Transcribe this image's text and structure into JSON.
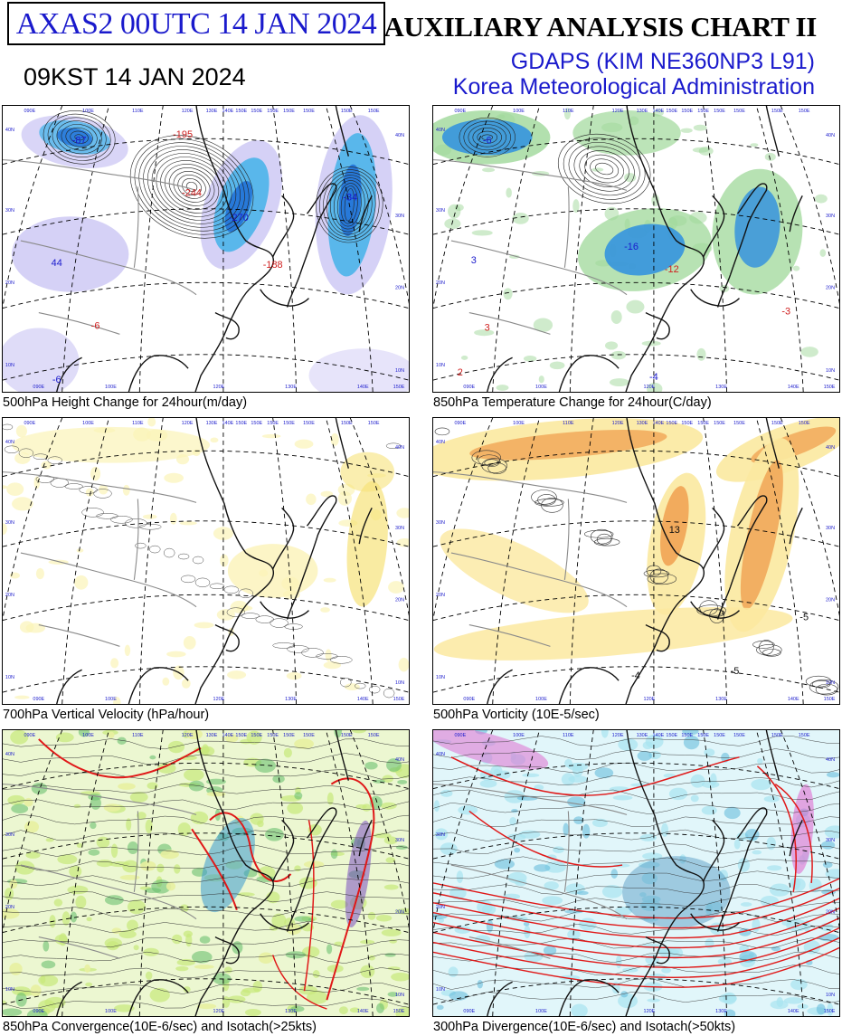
{
  "header": {
    "boxed_title": "AXAS2  00UTC 14 JAN 2024",
    "local_time": "09KST 14 JAN 2024",
    "main_title": "AUXILIARY ANALYSIS CHART II",
    "model": "GDAPS (KIM NE360NP3 L91)",
    "organization": "Korea Meteorological Administration"
  },
  "colors": {
    "title_blue": "#1a1acc",
    "height_fall_blue": "#3ab0e8",
    "height_fall_deep": "#1e6fd6",
    "height_rise_purple": "#b9b2f0",
    "temp_green": "#9fd89a",
    "temp_blue": "#2e8fe0",
    "vv_yellow": "#fbf3b8",
    "vort_orange": "#f0a050",
    "vort_yellow": "#fbe9a0",
    "isotach_red": "#e01818",
    "conv_green": "#c8e87a",
    "div_cyan": "#a8e4f0",
    "div_magenta": "#e070d0"
  },
  "map_grid": {
    "longitudes": [
      "090E",
      "100E",
      "110E",
      "120E",
      "130E",
      "140E",
      "150E"
    ],
    "latitudes": [
      "10N",
      "20N",
      "30N",
      "40N"
    ]
  },
  "panels": [
    {
      "id": "height_change",
      "caption": "500hPa Height Change for 24hour(m/day)",
      "values": [
        {
          "text": "-87"
        },
        {
          "text": "-195"
        },
        {
          "text": "-244"
        },
        {
          "text": "-270"
        },
        {
          "text": "-188"
        },
        {
          "text": "-34"
        },
        {
          "text": "44"
        },
        {
          "text": "-6"
        }
      ]
    },
    {
      "id": "temp_change",
      "caption": "850hPa Temperature Change for 24hour(C/day)",
      "values": [
        {
          "text": "-6"
        },
        {
          "text": "-16"
        },
        {
          "text": "-12"
        },
        {
          "text": "3"
        },
        {
          "text": "3"
        },
        {
          "text": "-4"
        },
        {
          "text": "2"
        },
        {
          "text": "-3"
        }
      ]
    },
    {
      "id": "vertical_velocity",
      "caption": "700hPa Vertical Velocity (hPa/hour)",
      "values": []
    },
    {
      "id": "vorticity",
      "caption": "500hPa Vorticity (10E-5/sec)",
      "values": [
        {
          "text": "13"
        },
        {
          "text": "-4"
        },
        {
          "text": "-5"
        },
        {
          "text": "-5"
        }
      ]
    },
    {
      "id": "convergence",
      "caption": "850hPa Convergence(10E-6/sec) and Isotach(>25kts)",
      "values": []
    },
    {
      "id": "divergence",
      "caption": "300hPa Divergence(10E-6/sec) and Isotach(>50kts)",
      "values": []
    }
  ]
}
